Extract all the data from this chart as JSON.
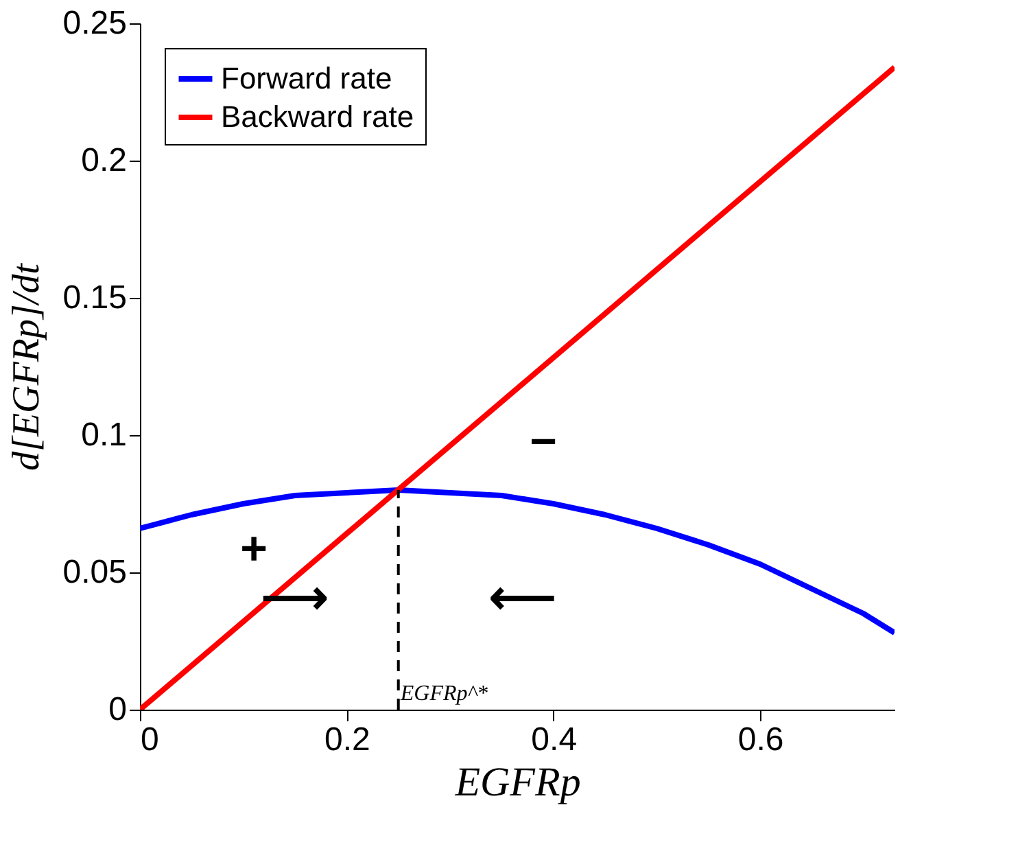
{
  "chart_data": {
    "type": "line",
    "xlabel": "EGFRp",
    "ylabel": "d[EGFRp]/dt",
    "series": [
      {
        "name": "Forward rate",
        "color": "#0000ff",
        "x": [
          0,
          0.05,
          0.1,
          0.15,
          0.2,
          0.25,
          0.3,
          0.35,
          0.4,
          0.45,
          0.5,
          0.55,
          0.6,
          0.65,
          0.7,
          0.73
        ],
        "values": [
          0.066,
          0.071,
          0.075,
          0.078,
          0.079,
          0.08,
          0.079,
          0.078,
          0.075,
          0.071,
          0.066,
          0.06,
          0.053,
          0.044,
          0.035,
          0.028
        ]
      },
      {
        "name": "Backward rate",
        "color": "#ff0000",
        "x": [
          0,
          0.73
        ],
        "values": [
          0,
          0.234
        ]
      },
      {
        "color": "#000000",
        "x": [
          0.25,
          0.25
        ],
        "values": [
          0,
          0.08
        ],
        "line_style": "dashed"
      }
    ],
    "annotations": [
      {
        "text": "EGFRp^*",
        "x": 0.252,
        "y": 0.006
      },
      "+",
      "−",
      "⟶",
      "⟵"
    ],
    "xlim": [
      0,
      0.73
    ],
    "xticks": [
      0,
      0.2,
      0.4,
      0.6
    ],
    "ylim": [
      0,
      0.25
    ],
    "yticks": [
      0,
      0.05,
      0.1,
      0.15,
      0.2,
      0.25
    ],
    "grid": false,
    "legend": "top left",
    "line_style": "solid"
  }
}
